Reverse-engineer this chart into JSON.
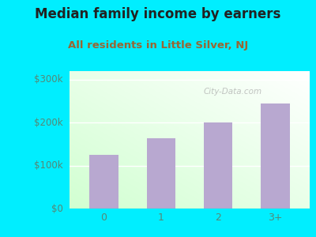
{
  "categories": [
    "0",
    "1",
    "2",
    "3+"
  ],
  "values": [
    125000,
    163000,
    200000,
    245000
  ],
  "bar_color": "#b8a8d0",
  "title": "Median family income by earners",
  "subtitle": "All residents in Little Silver, NJ",
  "title_fontsize": 12,
  "subtitle_fontsize": 9.5,
  "title_color": "#222222",
  "subtitle_color": "#996633",
  "ylim": [
    0,
    320000
  ],
  "yticks": [
    0,
    100000,
    200000,
    300000
  ],
  "ytick_labels": [
    "$0",
    "$100k",
    "$200k",
    "$300k"
  ],
  "background_color": "#00eeff",
  "watermark": "City-Data.com",
  "watermark_color": "#aaaaaa",
  "tick_label_color": "#558877",
  "grid_color": "#dddddd"
}
